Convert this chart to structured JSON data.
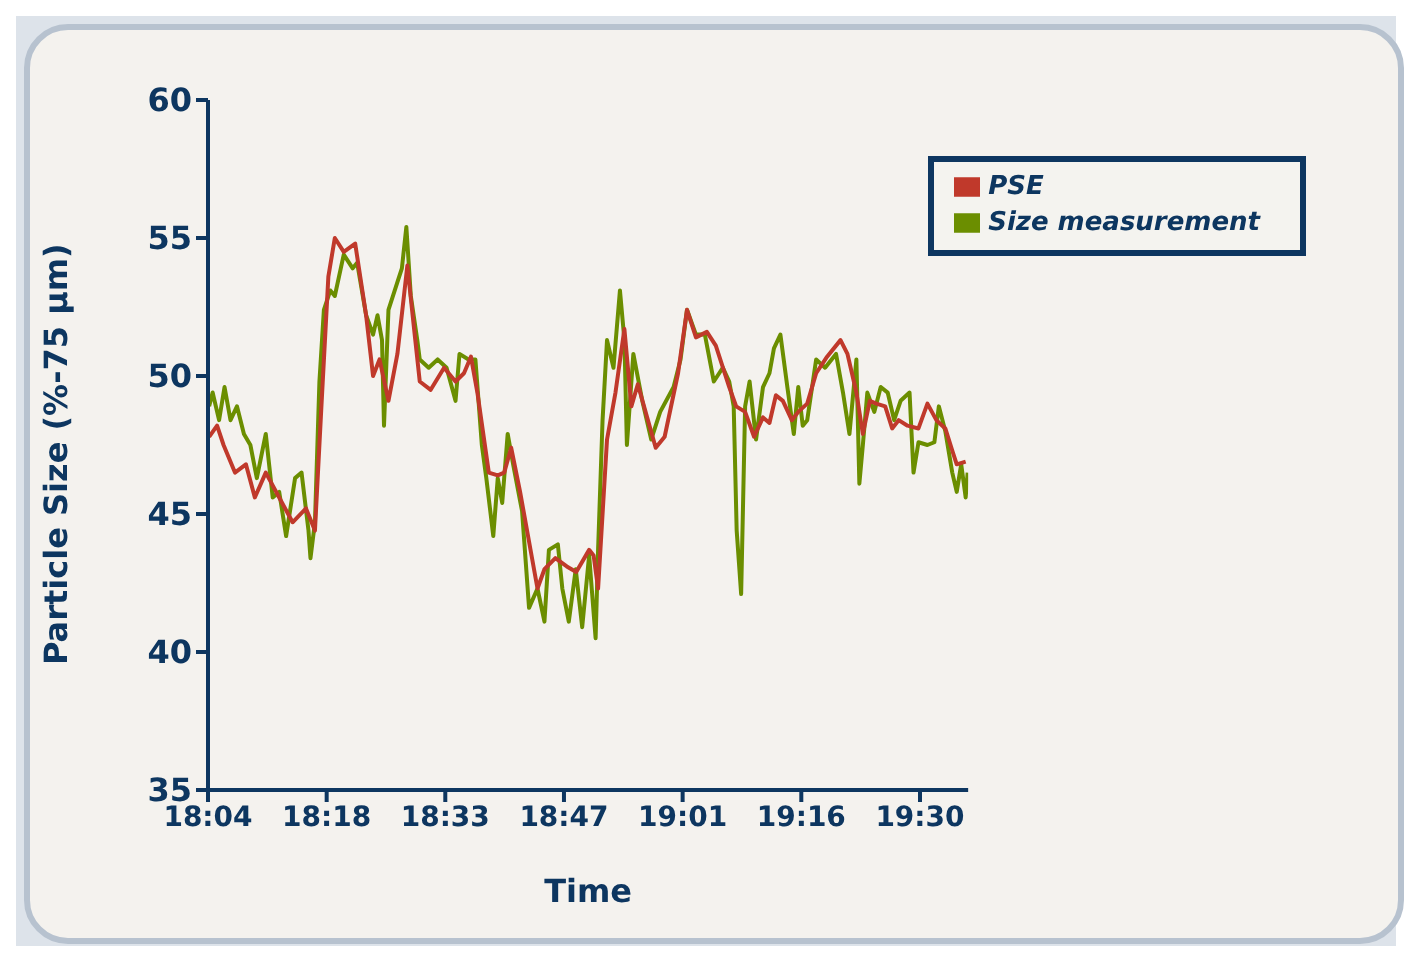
{
  "chart_data": {
    "type": "line",
    "xlabel": "Time",
    "ylabel": "Particle Size (%-75 µm)",
    "xlim": [
      18.0667,
      19.597
    ],
    "ylim": [
      35,
      60
    ],
    "yticks": [
      35,
      40,
      45,
      50,
      55,
      60
    ],
    "xticks": [
      {
        "value": 18.0667,
        "label": "18:04"
      },
      {
        "value": 18.3056,
        "label": "18:18"
      },
      {
        "value": 18.5444,
        "label": "18:33"
      },
      {
        "value": 18.7833,
        "label": "18:47"
      },
      {
        "value": 19.0222,
        "label": "19:01"
      },
      {
        "value": 19.2611,
        "label": "19:16"
      },
      {
        "value": 19.5,
        "label": "19:30"
      }
    ],
    "legend": "top right",
    "grid": false,
    "marker": "none",
    "line_style": "solid",
    "series": [
      {
        "name": "Size measurement",
        "color": "#6b8e00",
        "x": [
          18.069,
          18.076,
          18.089,
          18.1,
          18.112,
          18.125,
          18.139,
          18.152,
          18.165,
          18.183,
          18.197,
          18.21,
          18.224,
          18.242,
          18.255,
          18.269,
          18.273,
          18.282,
          18.291,
          18.3,
          18.313,
          18.322,
          18.34,
          18.358,
          18.367,
          18.385,
          18.399,
          18.408,
          18.417,
          18.421,
          18.43,
          18.448,
          18.457,
          18.466,
          18.475,
          18.488,
          18.493,
          18.511,
          18.529,
          18.547,
          18.565,
          18.573,
          18.591,
          18.605,
          18.618,
          18.627,
          18.641,
          18.65,
          18.659,
          18.67,
          18.681,
          18.699,
          18.713,
          18.73,
          18.744,
          18.753,
          18.771,
          18.78,
          18.793,
          18.807,
          18.82,
          18.834,
          18.847,
          18.852,
          18.861,
          18.87,
          18.883,
          18.896,
          18.905,
          18.91,
          18.923,
          18.941,
          18.959,
          18.977,
          19.004,
          19.018,
          19.031,
          19.049,
          19.067,
          19.085,
          19.103,
          19.116,
          19.125,
          19.131,
          19.14,
          19.148,
          19.157,
          19.17,
          19.184,
          19.197,
          19.206,
          19.219,
          19.233,
          19.246,
          19.255,
          19.264,
          19.273,
          19.291,
          19.309,
          19.331,
          19.345,
          19.358,
          19.372,
          19.378,
          19.385,
          19.394,
          19.408,
          19.421,
          19.435,
          19.448,
          19.461,
          19.479,
          19.487,
          19.497,
          19.515,
          19.529,
          19.538,
          19.551,
          19.565,
          19.574,
          19.583,
          19.592,
          19.596
        ],
        "values": [
          48.9,
          49.4,
          48.4,
          49.6,
          48.4,
          48.9,
          47.9,
          47.5,
          46.3,
          47.9,
          45.6,
          45.8,
          44.2,
          46.3,
          46.5,
          44.4,
          43.4,
          44.7,
          49.8,
          52.4,
          53.1,
          52.9,
          54.4,
          53.9,
          54.1,
          52.2,
          51.5,
          52.2,
          51.3,
          48.2,
          52.4,
          53.4,
          53.9,
          55.4,
          52.9,
          51.3,
          50.6,
          50.3,
          50.6,
          50.3,
          49.1,
          50.8,
          50.6,
          50.6,
          47.5,
          46.3,
          44.2,
          46.3,
          45.4,
          47.9,
          46.8,
          45.1,
          41.6,
          42.3,
          41.1,
          43.7,
          43.9,
          42.3,
          41.1,
          43.0,
          40.9,
          43.5,
          40.5,
          43.7,
          48.4,
          51.3,
          50.3,
          53.1,
          51.3,
          47.5,
          50.8,
          49.1,
          47.7,
          48.7,
          49.6,
          50.6,
          52.4,
          51.5,
          51.5,
          49.8,
          50.3,
          49.8,
          48.9,
          44.4,
          42.1,
          48.9,
          49.8,
          47.7,
          49.6,
          50.1,
          51.0,
          51.5,
          49.6,
          47.9,
          49.6,
          48.2,
          48.4,
          50.6,
          50.3,
          50.8,
          49.4,
          47.9,
          50.6,
          46.1,
          47.5,
          49.4,
          48.7,
          49.6,
          49.4,
          48.4,
          49.1,
          49.4,
          46.5,
          47.6,
          47.5,
          47.6,
          48.9,
          48.0,
          46.5,
          45.8,
          46.8,
          45.6,
          46.5
        ]
      },
      {
        "name": "PSE",
        "color": "#c0392b",
        "x": [
          18.069,
          18.085,
          18.098,
          18.121,
          18.143,
          18.161,
          18.183,
          18.21,
          18.237,
          18.264,
          18.282,
          18.295,
          18.309,
          18.322,
          18.34,
          18.363,
          18.385,
          18.399,
          18.412,
          18.43,
          18.448,
          18.468,
          18.484,
          18.493,
          18.515,
          18.542,
          18.565,
          18.582,
          18.596,
          18.609,
          18.632,
          18.65,
          18.663,
          18.677,
          18.695,
          18.73,
          18.744,
          18.766,
          18.789,
          18.808,
          18.834,
          18.843,
          18.852,
          18.87,
          18.887,
          18.905,
          18.919,
          18.932,
          18.968,
          18.986,
          19.013,
          19.031,
          19.049,
          19.071,
          19.089,
          19.116,
          19.13,
          19.148,
          19.166,
          19.184,
          19.197,
          19.21,
          19.224,
          19.242,
          19.255,
          19.273,
          19.291,
          19.313,
          19.34,
          19.354,
          19.372,
          19.385,
          19.399,
          19.412,
          19.43,
          19.444,
          19.457,
          19.475,
          19.497,
          19.515,
          19.533,
          19.551,
          19.565,
          19.574,
          19.592
        ],
        "values": [
          47.8,
          48.2,
          47.5,
          46.5,
          46.8,
          45.6,
          46.5,
          45.6,
          44.7,
          45.2,
          44.4,
          48.9,
          53.6,
          55.0,
          54.5,
          54.8,
          52.2,
          50.0,
          50.6,
          49.1,
          50.8,
          54.0,
          51.3,
          49.8,
          49.5,
          50.3,
          49.8,
          50.1,
          50.7,
          49.4,
          46.5,
          46.4,
          46.5,
          47.4,
          45.8,
          42.3,
          43.0,
          43.4,
          43.1,
          42.9,
          43.7,
          43.5,
          42.3,
          47.7,
          49.4,
          51.7,
          48.9,
          49.7,
          47.4,
          47.8,
          50.1,
          52.4,
          51.4,
          51.6,
          51.1,
          49.6,
          48.9,
          48.7,
          47.8,
          48.5,
          48.3,
          49.3,
          49.1,
          48.4,
          48.7,
          49.0,
          50.1,
          50.7,
          51.3,
          50.8,
          49.4,
          47.9,
          49.1,
          49.0,
          48.9,
          48.1,
          48.4,
          48.2,
          48.1,
          49.0,
          48.4,
          48.1,
          47.3,
          46.8,
          46.9
        ]
      }
    ]
  }
}
